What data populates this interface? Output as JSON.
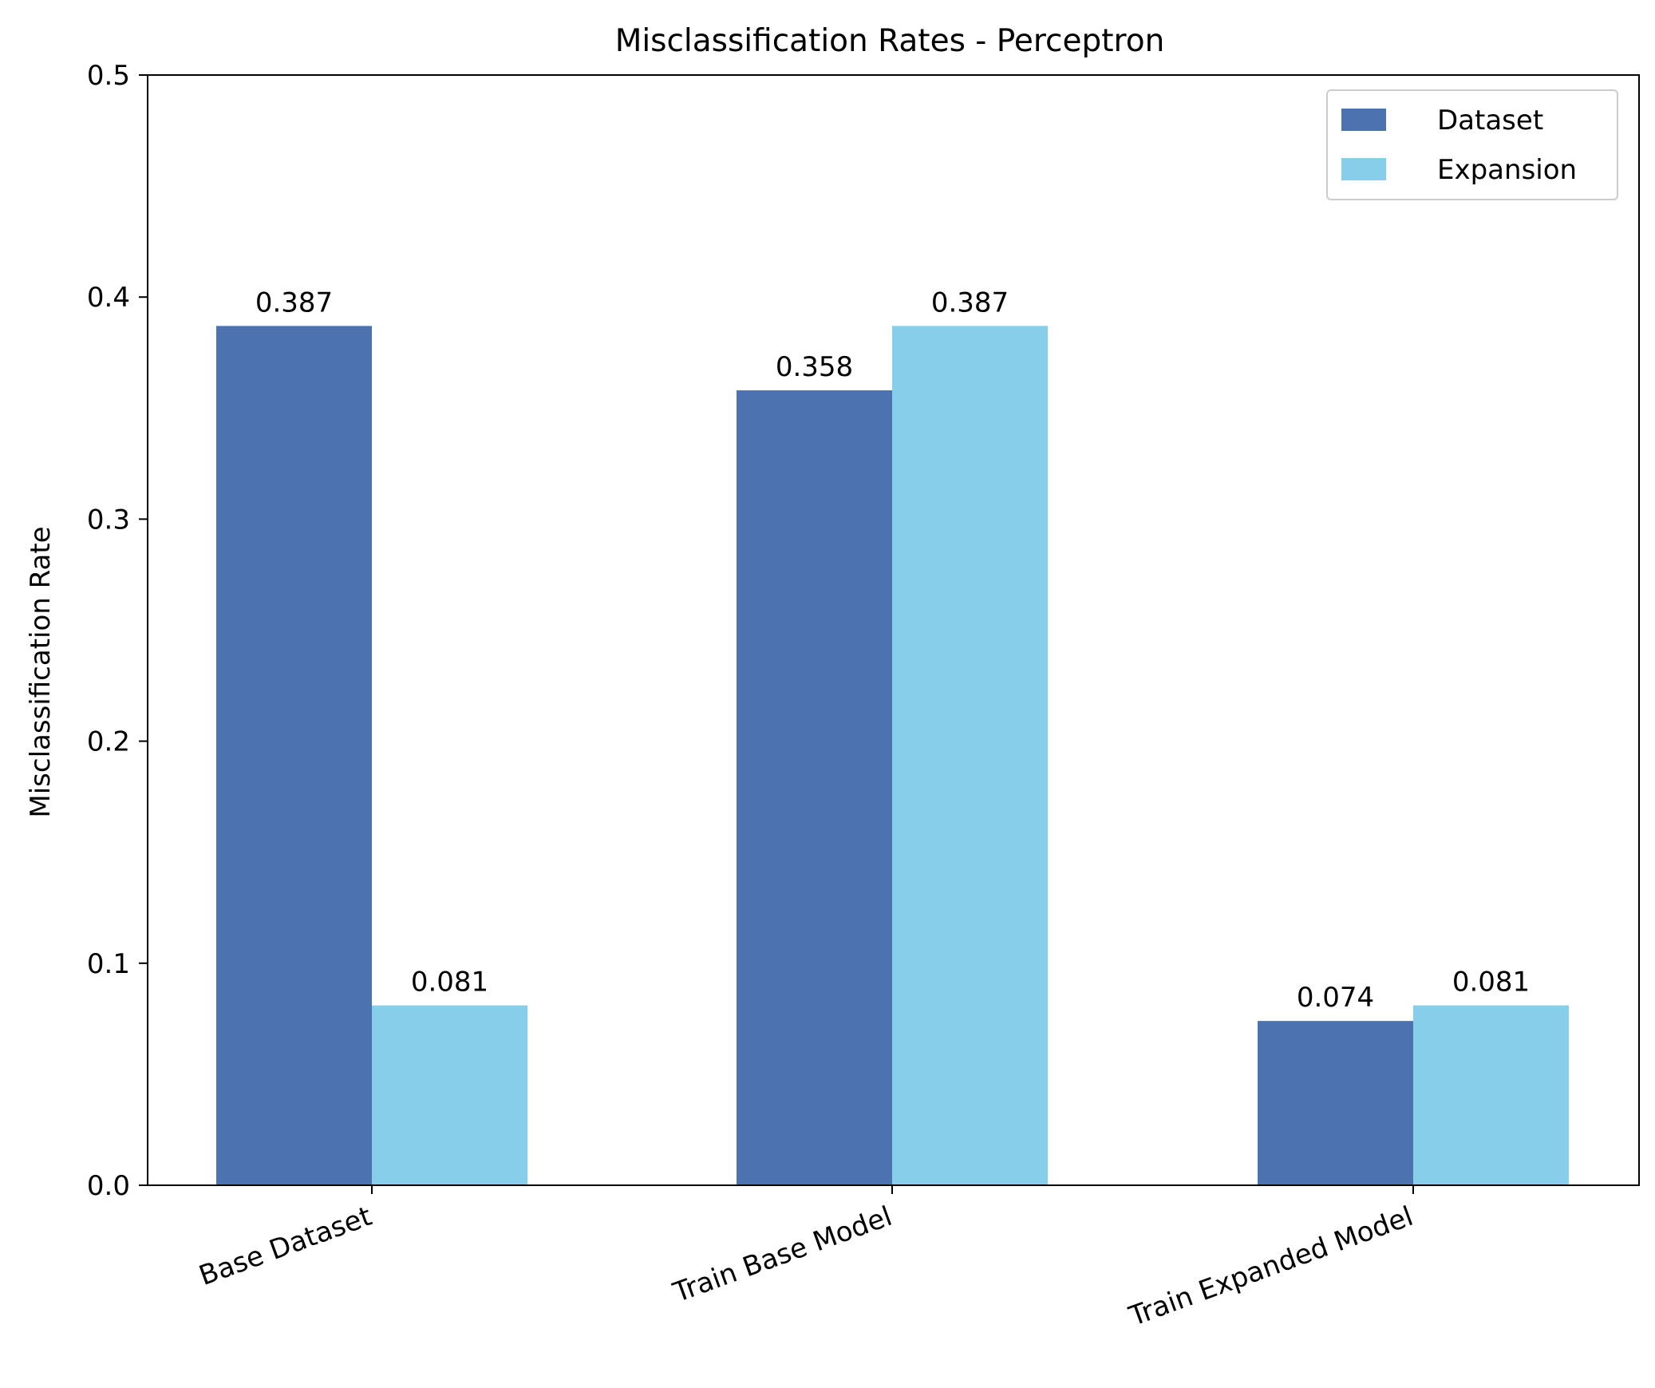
{
  "chart_data": {
    "type": "bar",
    "title": "Misclassification Rates - Perceptron",
    "xlabel": "",
    "ylabel": "Misclassification Rate",
    "categories": [
      "Base Dataset",
      "Train Base Model",
      "Train Expanded Model"
    ],
    "series": [
      {
        "name": "Dataset",
        "values": [
          0.387,
          0.358,
          0.074
        ],
        "color": "#4C72B0"
      },
      {
        "name": "Expansion",
        "values": [
          0.081,
          0.387,
          0.081
        ],
        "color": "#87CEEB"
      }
    ],
    "value_labels": [
      [
        "0.387",
        "0.358",
        "0.074"
      ],
      [
        "0.081",
        "0.387",
        "0.081"
      ]
    ],
    "ylim": [
      0,
      0.5
    ],
    "yticks": [
      0.0,
      0.1,
      0.2,
      0.3,
      0.4,
      0.5
    ],
    "ytick_labels": [
      "0.0",
      "0.1",
      "0.2",
      "0.3",
      "0.4",
      "0.5"
    ],
    "grid": false,
    "legend_position": "top-right"
  }
}
